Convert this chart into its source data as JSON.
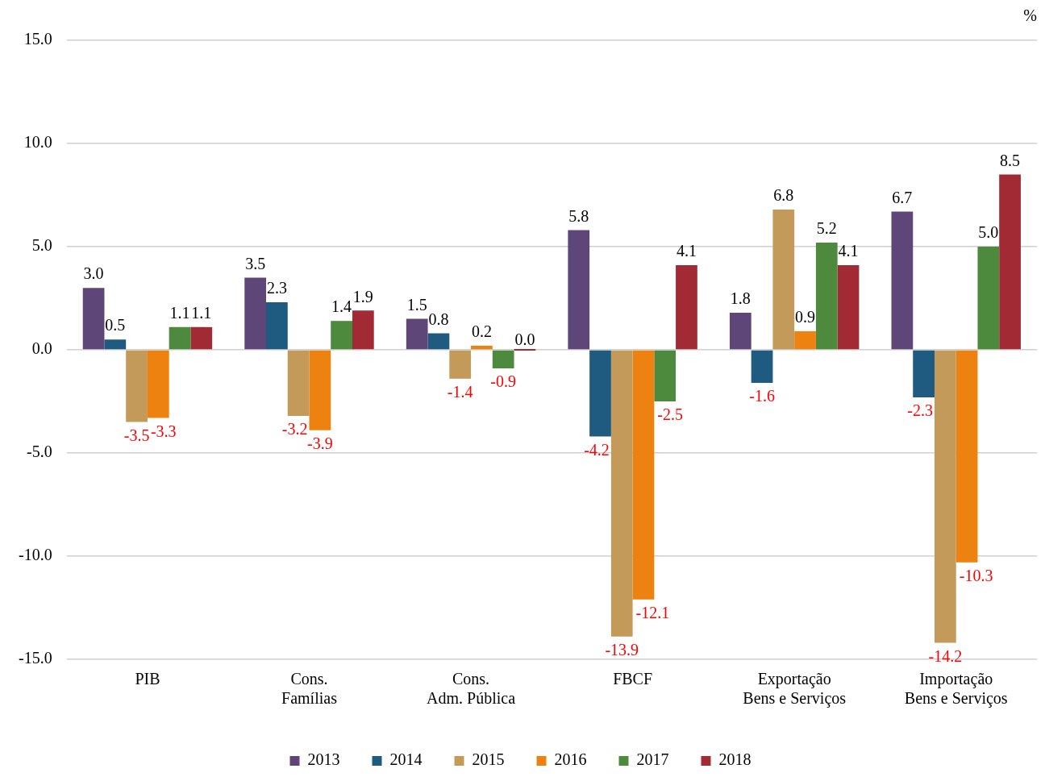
{
  "chart_data": {
    "type": "bar",
    "ylabel": "%",
    "categories": [
      "PIB",
      "Cons.\nFamílias",
      "Cons.\nAdm. Pública",
      "FBCF",
      "Exportação\nBens e Serviços",
      "Importação\nBens e Serviços"
    ],
    "series": [
      {
        "name": "2013",
        "color": "#5e4778",
        "values": [
          3.0,
          3.5,
          1.5,
          5.8,
          1.8,
          6.7
        ],
        "value_labels": [
          "3.0",
          "3.5",
          "1.5",
          "5.8",
          "1.8",
          "6.7"
        ]
      },
      {
        "name": "2014",
        "color": "#1f5a80",
        "values": [
          0.5,
          2.3,
          0.8,
          -4.2,
          -1.6,
          -2.3
        ],
        "value_labels": [
          "0.5",
          "2.3",
          "0.8",
          "-4.2",
          "-1.6",
          "-2.3"
        ]
      },
      {
        "name": "2015",
        "color": "#c49a5a",
        "values": [
          -3.5,
          -3.2,
          -1.4,
          -13.9,
          6.8,
          -14.2
        ],
        "value_labels": [
          "-3.5",
          "-3.2",
          "-1.4",
          "-13.9",
          "6.8",
          "-14.2"
        ]
      },
      {
        "name": "2016",
        "color": "#ee8210",
        "values": [
          -3.3,
          -3.9,
          0.2,
          -12.1,
          0.9,
          -10.3
        ],
        "value_labels": [
          "-3.3",
          "-3.9",
          "0.2",
          "-12.1",
          "0.9",
          "-10.3"
        ]
      },
      {
        "name": "2017",
        "color": "#4e8a3e",
        "values": [
          1.1,
          1.4,
          -0.9,
          -2.5,
          5.2,
          5.0
        ],
        "value_labels": [
          "1.1",
          "1.4",
          "-0.9",
          "-2.5",
          "5.2",
          "5.0"
        ]
      },
      {
        "name": "2018",
        "color": "#a12a35",
        "values": [
          1.1,
          1.9,
          0.0,
          4.1,
          4.1,
          8.5
        ],
        "value_labels": [
          "1.1",
          "1.9",
          "0.0",
          "4.1",
          "4.1",
          "8.5"
        ]
      }
    ],
    "ylim": [
      -15,
      15
    ],
    "yticks": [
      {
        "value": -15,
        "label": "-15.0"
      },
      {
        "value": -10,
        "label": "-10.0"
      },
      {
        "value": -5,
        "label": "-5.0"
      },
      {
        "value": 0,
        "label": "0.0"
      },
      {
        "value": 5,
        "label": "5.0"
      },
      {
        "value": 10,
        "label": "10.0"
      },
      {
        "value": 15,
        "label": "15.0"
      }
    ],
    "grid": "y",
    "legend": "bottom"
  }
}
